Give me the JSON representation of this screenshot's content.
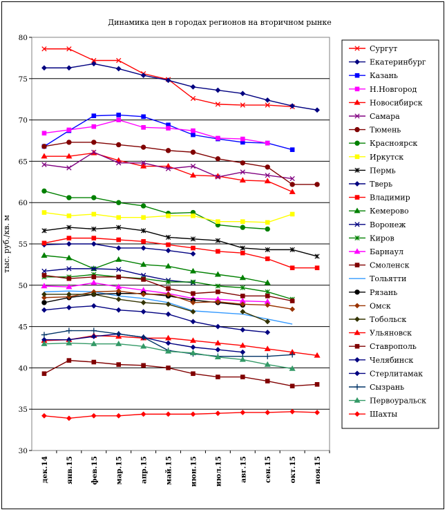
{
  "chart_data": {
    "type": "line",
    "title": "Динамика цен в городах регионов на вторичном рынке",
    "ylabel": "тыс. руб./кв. м",
    "xlabel": "",
    "ylim": [
      30,
      80
    ],
    "y_ticks": [
      "30",
      "35",
      "40",
      "45",
      "50",
      "55",
      "60",
      "65",
      "70",
      "75",
      "80"
    ],
    "categories": [
      "дек.14",
      "янв.15",
      "фев.15",
      "мар.15",
      "апр.15",
      "май.15",
      "июн.15",
      "июл.15",
      "авг.15",
      "сен.15",
      "окт.15",
      "ноя.15"
    ],
    "grid": "horizontal",
    "legend_position": "right",
    "series": [
      {
        "name": "Сургут",
        "color": "#ff0000",
        "marker": "x",
        "values": [
          78.6,
          78.6,
          77.2,
          77.2,
          75.6,
          74.9,
          72.6,
          71.9,
          71.8,
          71.8,
          71.6,
          null
        ]
      },
      {
        "name": "Екатеринбург",
        "color": "#000080",
        "marker": "diamond",
        "values": [
          76.3,
          76.3,
          76.8,
          76.2,
          75.4,
          74.8,
          74.0,
          73.6,
          73.2,
          72.4,
          71.7,
          71.2
        ]
      },
      {
        "name": "Казань",
        "color": "#0000ff",
        "marker": "square",
        "values": [
          66.8,
          68.7,
          70.5,
          70.6,
          70.4,
          69.4,
          68.2,
          67.7,
          67.3,
          67.2,
          66.4,
          null
        ]
      },
      {
        "name": "Н.Новгород",
        "color": "#ff00ff",
        "marker": "square",
        "values": [
          68.4,
          68.8,
          69.2,
          70.0,
          69.1,
          69.0,
          68.7,
          67.8,
          67.7,
          67.2,
          null,
          null
        ]
      },
      {
        "name": "Новосибирск",
        "color": "#ff0000",
        "marker": "triangle",
        "values": [
          65.6,
          65.6,
          66.0,
          65.1,
          64.4,
          64.4,
          63.3,
          63.2,
          62.7,
          62.6,
          61.3,
          null
        ]
      },
      {
        "name": "Самара",
        "color": "#800080",
        "marker": "x",
        "values": [
          64.6,
          64.2,
          66.1,
          64.8,
          64.8,
          64.1,
          64.4,
          63.1,
          63.7,
          63.3,
          62.9,
          null
        ]
      },
      {
        "name": "Тюмень",
        "color": "#800000",
        "marker": "circle",
        "values": [
          66.8,
          67.3,
          67.3,
          67.0,
          66.7,
          66.3,
          66.1,
          65.3,
          64.8,
          64.3,
          62.2,
          62.2
        ]
      },
      {
        "name": "Красноярск",
        "color": "#008000",
        "marker": "circle",
        "values": [
          61.4,
          60.6,
          60.6,
          60.0,
          59.6,
          58.7,
          58.8,
          57.3,
          57.0,
          56.8,
          null,
          null
        ]
      },
      {
        "name": "Иркутск",
        "color": "#ffff00",
        "marker": "square",
        "values": [
          58.8,
          58.4,
          58.6,
          58.2,
          58.2,
          58.4,
          58.4,
          57.7,
          57.7,
          57.6,
          58.6,
          null
        ]
      },
      {
        "name": "Пермь",
        "color": "#000000",
        "marker": "star",
        "values": [
          56.6,
          57.0,
          56.8,
          57.0,
          56.6,
          55.8,
          55.6,
          55.4,
          54.5,
          54.3,
          54.3,
          53.5
        ]
      },
      {
        "name": "Тверь",
        "color": "#000080",
        "marker": "diamond",
        "values": [
          54.9,
          55.0,
          55.0,
          54.5,
          54.5,
          54.2,
          53.8,
          null,
          null,
          null,
          null,
          null
        ]
      },
      {
        "name": "Владимир",
        "color": "#ff0000",
        "marker": "square",
        "values": [
          55.1,
          55.7,
          55.7,
          55.5,
          55.3,
          54.9,
          54.5,
          54.1,
          53.9,
          53.2,
          52.1,
          52.1
        ]
      },
      {
        "name": "Кемерово",
        "color": "#008000",
        "marker": "triangle",
        "values": [
          53.6,
          53.3,
          52.0,
          53.1,
          52.5,
          52.3,
          51.7,
          51.3,
          50.9,
          50.3,
          null,
          null
        ]
      },
      {
        "name": "Воронеж",
        "color": "#000080",
        "marker": "x",
        "values": [
          51.7,
          52.0,
          52.0,
          51.9,
          51.2,
          50.6,
          50.3,
          null,
          null,
          null,
          null,
          null
        ]
      },
      {
        "name": "Киров",
        "color": "#008000",
        "marker": "star",
        "values": [
          51.0,
          51.0,
          51.3,
          51.0,
          50.8,
          50.4,
          50.4,
          49.9,
          49.7,
          49.2,
          48.3,
          null
        ]
      },
      {
        "name": "Барнаул",
        "color": "#ff00ff",
        "marker": "triangle",
        "values": [
          49.9,
          49.8,
          50.3,
          49.8,
          49.4,
          49.0,
          48.4,
          48.3,
          48.1,
          48.0,
          null,
          null
        ]
      },
      {
        "name": "Смоленск",
        "color": "#800000",
        "marker": "square",
        "values": [
          51.2,
          50.8,
          51.0,
          51.0,
          50.7,
          49.6,
          49.0,
          49.2,
          48.7,
          48.7,
          48.1,
          null
        ]
      },
      {
        "name": "Тольятти",
        "color": "#3399ff",
        "marker": "none",
        "values": [
          49.2,
          49.3,
          49.2,
          48.7,
          48.4,
          47.9,
          46.9,
          46.7,
          46.5,
          45.9,
          45.3,
          null
        ]
      },
      {
        "name": "Рязань",
        "color": "#000000",
        "marker": "circle",
        "values": [
          47.9,
          48.5,
          48.9,
          49.0,
          49.0,
          48.7,
          48.2,
          47.9,
          47.6,
          null,
          null,
          null
        ]
      },
      {
        "name": "Омск",
        "color": "#993300",
        "marker": "diamond",
        "values": [
          48.5,
          48.6,
          49.2,
          49.3,
          48.9,
          48.9,
          47.9,
          48.0,
          47.7,
          47.6,
          47.1,
          null
        ]
      },
      {
        "name": "Тобольск",
        "color": "#333300",
        "marker": "diamond",
        "values": [
          48.9,
          48.9,
          48.9,
          48.3,
          47.9,
          47.7,
          46.8,
          null,
          46.8,
          45.6,
          null,
          null
        ]
      },
      {
        "name": "Ульяновск",
        "color": "#ff0000",
        "marker": "triangle",
        "values": [
          43.3,
          43.4,
          43.9,
          43.8,
          43.6,
          43.6,
          43.3,
          43.0,
          42.7,
          42.3,
          41.9,
          41.5
        ]
      },
      {
        "name": "Ставрополь",
        "color": "#800000",
        "marker": "square",
        "values": [
          39.3,
          40.9,
          40.7,
          40.4,
          40.3,
          40.0,
          39.3,
          38.9,
          38.9,
          38.4,
          37.8,
          38.0
        ]
      },
      {
        "name": "Челябинск",
        "color": "#000080",
        "marker": "diamond",
        "values": [
          43.4,
          43.4,
          43.8,
          44.1,
          43.7,
          43.0,
          42.5,
          42.2,
          41.9,
          null,
          null,
          null
        ]
      },
      {
        "name": "Стерлитамак",
        "color": "#000080",
        "marker": "diamond",
        "values": [
          47.0,
          47.3,
          47.5,
          47.0,
          46.8,
          46.5,
          45.6,
          45.0,
          44.6,
          44.3,
          null,
          null
        ]
      },
      {
        "name": "Сызрань",
        "color": "#003366",
        "marker": "plus",
        "values": [
          44.0,
          44.5,
          44.5,
          44.1,
          43.7,
          42.1,
          41.7,
          41.4,
          41.4,
          41.4,
          41.6,
          null
        ]
      },
      {
        "name": "Первоуральск",
        "color": "#339966",
        "marker": "triangle",
        "values": [
          42.9,
          43.0,
          42.9,
          42.9,
          42.6,
          42.0,
          41.8,
          41.3,
          41.0,
          40.4,
          39.9,
          null
        ]
      },
      {
        "name": "Шахты",
        "color": "#ff0000",
        "marker": "diamond",
        "values": [
          34.2,
          33.9,
          34.2,
          34.2,
          34.4,
          34.4,
          34.4,
          34.5,
          34.6,
          34.6,
          34.7,
          34.6
        ]
      }
    ]
  }
}
